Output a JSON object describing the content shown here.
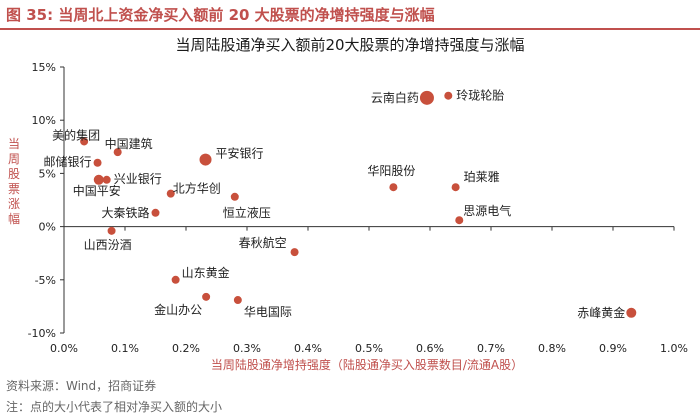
{
  "figure": {
    "label": "图 35:",
    "title": "当周北上资金净买入额前 20 大股票的净增持强度与涨幅"
  },
  "chart_data": {
    "type": "scatter",
    "title": "当周陆股通净买入额前20大股票的净增持强度与涨幅",
    "xlabel": "当周陆股通净增持强度（陆股通净买入股票数目/流通A股）",
    "ylabel": "当周股票涨幅",
    "xlim": [
      0,
      1.0
    ],
    "ylim": [
      -10,
      15
    ],
    "x_unit": "%",
    "y_unit": "%",
    "x_ticks": [
      "0.0%",
      "0.1%",
      "0.2%",
      "0.3%",
      "0.4%",
      "0.5%",
      "0.6%",
      "0.7%",
      "0.8%",
      "0.9%",
      "1.0%"
    ],
    "y_ticks": [
      "-10%",
      "-5%",
      "0%",
      "5%",
      "10%",
      "15%"
    ],
    "grid": false,
    "marker_color": "#c8503c",
    "points": [
      {
        "name": "云南白药",
        "x": 0.595,
        "y": 12.1,
        "size": 7
      },
      {
        "name": "玲珑轮胎",
        "x": 0.63,
        "y": 12.3,
        "size": 4
      },
      {
        "name": "美的集团",
        "x": 0.033,
        "y": 8.0,
        "size": 4
      },
      {
        "name": "中国建筑",
        "x": 0.088,
        "y": 7.0,
        "size": 4
      },
      {
        "name": "平安银行",
        "x": 0.232,
        "y": 6.3,
        "size": 6
      },
      {
        "name": "邮储银行",
        "x": 0.055,
        "y": 6.0,
        "size": 4
      },
      {
        "name": "中国平安",
        "x": 0.057,
        "y": 4.4,
        "size": 5
      },
      {
        "name": "兴业银行",
        "x": 0.07,
        "y": 4.4,
        "size": 4
      },
      {
        "name": "北方华创",
        "x": 0.175,
        "y": 3.1,
        "size": 4
      },
      {
        "name": "恒立液压",
        "x": 0.28,
        "y": 2.8,
        "size": 4
      },
      {
        "name": "华阳股份",
        "x": 0.54,
        "y": 3.7,
        "size": 4
      },
      {
        "name": "珀莱雅",
        "x": 0.642,
        "y": 3.7,
        "size": 4
      },
      {
        "name": "大秦铁路",
        "x": 0.15,
        "y": 1.3,
        "size": 4
      },
      {
        "name": "思源电气",
        "x": 0.648,
        "y": 0.6,
        "size": 4
      },
      {
        "name": "山西汾酒",
        "x": 0.078,
        "y": -0.4,
        "size": 4
      },
      {
        "name": "春秋航空",
        "x": 0.378,
        "y": -2.4,
        "size": 4
      },
      {
        "name": "山东黄金",
        "x": 0.183,
        "y": -5.0,
        "size": 4
      },
      {
        "name": "金山办公",
        "x": 0.233,
        "y": -6.6,
        "size": 4
      },
      {
        "name": "华电国际",
        "x": 0.285,
        "y": -6.9,
        "size": 4
      },
      {
        "name": "赤峰黄金",
        "x": 0.93,
        "y": -8.1,
        "size": 5
      }
    ]
  },
  "footer": {
    "source": "资料来源：Wind，招商证券",
    "note": "注：点的大小代表了相对净买入额的大小"
  }
}
